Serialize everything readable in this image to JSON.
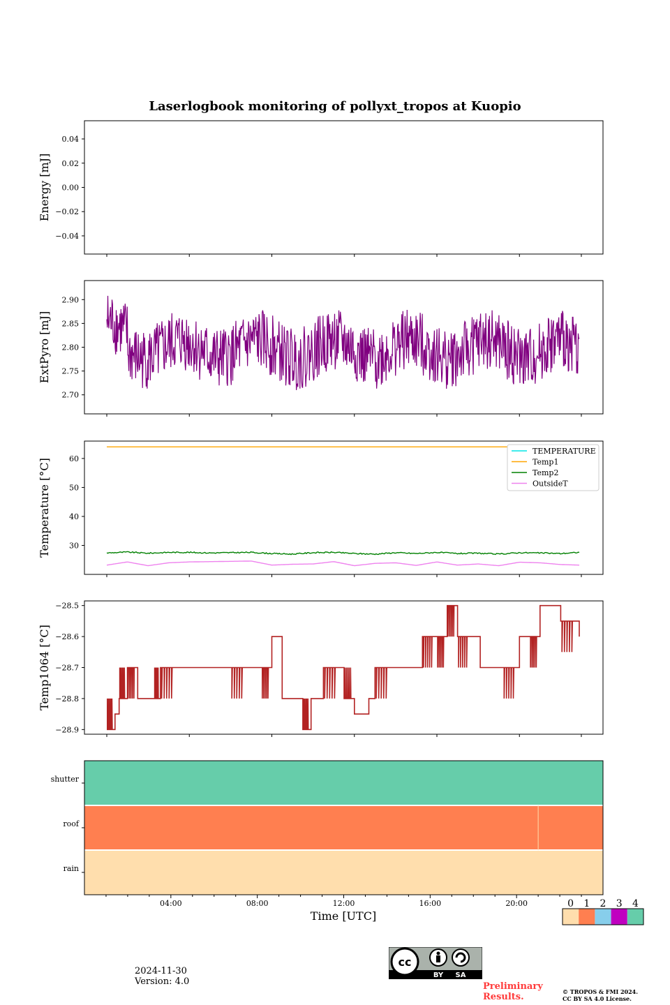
{
  "chart_data": {
    "title": "Laserlogbook monitoring of pollyxt_tropos at Kuopio",
    "xlabel": "Time [UTC]",
    "x_ticks": [
      "04:00",
      "08:00",
      "12:00",
      "16:00",
      "20:00"
    ],
    "panels": [
      {
        "type": "line",
        "ylabel": "Energy [mJ]",
        "yticks": [
          "0.04",
          "0.02",
          "0.00",
          "−0.02",
          "−0.04"
        ],
        "ylim": [
          -0.055,
          0.055
        ],
        "series": []
      },
      {
        "type": "line",
        "ylabel": "ExtPyro [mJ]",
        "yticks": [
          "2.90",
          "2.85",
          "2.80",
          "2.75",
          "2.70"
        ],
        "ylim": [
          2.66,
          2.94
        ],
        "series": [
          {
            "color": "#800080",
            "x_range_hours": [
              1.0,
              23.9
            ],
            "mean": 2.795,
            "min": 2.67,
            "max": 2.925
          }
        ]
      },
      {
        "type": "line",
        "ylabel": "Temperature [°C]",
        "yticks": [
          "60",
          "50",
          "40",
          "30"
        ],
        "ylim": [
          20,
          66
        ],
        "legend_position": "upper-right",
        "series": [
          {
            "name": "TEMPERATURE",
            "color": "#00e5e5",
            "values": []
          },
          {
            "name": "Temp1",
            "color": "#ffa500",
            "x": [
              1.0,
              23.9
            ],
            "values": [
              64,
              64
            ]
          },
          {
            "name": "Temp2",
            "color": "#008000",
            "x": [
              1,
              2,
              3,
              4,
              5,
              6,
              7,
              8,
              9,
              10,
              11,
              12,
              13,
              14,
              15,
              16,
              17,
              18,
              19,
              20,
              21,
              22,
              23,
              23.9
            ],
            "values": [
              27.4,
              27.7,
              27.3,
              27.6,
              27.6,
              27.4,
              27.5,
              27.6,
              27.2,
              27.0,
              27.5,
              27.6,
              27.2,
              27.0,
              27.5,
              27.2,
              27.6,
              27.2,
              27.3,
              27.0,
              27.5,
              27.4,
              27.2,
              27.6
            ]
          },
          {
            "name": "OutsideT",
            "color": "#ee82ee",
            "x": [
              1,
              2,
              3,
              4,
              5,
              6,
              7,
              8,
              9,
              10,
              11,
              12,
              13,
              14,
              15,
              16,
              17,
              18,
              19,
              20,
              21,
              22,
              23,
              23.9
            ],
            "values": [
              23.2,
              24.3,
              23.0,
              24.0,
              24.3,
              24.4,
              24.5,
              24.6,
              23.2,
              23.5,
              23.6,
              24.4,
              23.0,
              23.8,
              24.0,
              23.1,
              24.3,
              23.2,
              23.6,
              23.0,
              24.2,
              24.0,
              23.4,
              23.2
            ]
          }
        ]
      },
      {
        "type": "line",
        "ylabel": "Temp1064 [°C]",
        "yticks": [
          "−28.5",
          "−28.6",
          "−28.7",
          "−28.8",
          "−28.9"
        ],
        "ylim": [
          -28.915,
          -28.485
        ],
        "series": [
          {
            "color": "#b22222",
            "x": [
              1.0,
              1.4,
              1.6,
              2.0,
              2.5,
              3.3,
              3.6,
              7.0,
              8.5,
              9.0,
              9.5,
              10.5,
              10.9,
              11.5,
              12.5,
              13.0,
              13.7,
              14.0,
              15.0,
              16.0,
              16.3,
              17.0,
              17.5,
              18.0,
              18.7,
              19.1,
              20.2,
              21.0,
              21.5,
              22.0,
              23.0,
              23.9
            ],
            "values": [
              -28.9,
              -28.85,
              -28.8,
              -28.7,
              -28.8,
              -28.8,
              -28.7,
              -28.7,
              -28.7,
              -28.6,
              -28.8,
              -28.9,
              -28.8,
              -28.7,
              -28.8,
              -28.85,
              -28.8,
              -28.7,
              -28.7,
              -28.7,
              -28.6,
              -28.6,
              -28.5,
              -28.6,
              -28.6,
              -28.7,
              -28.7,
              -28.6,
              -28.6,
              -28.5,
              -28.55,
              -28.6
            ]
          }
        ]
      },
      {
        "type": "heatmap",
        "rows": [
          "shutter",
          "roof",
          "rain"
        ],
        "row_states": [
          4,
          1,
          0
        ]
      }
    ],
    "colorbar": {
      "labels": [
        "0",
        "1",
        "2",
        "3",
        "4"
      ],
      "colors": [
        "#ffdead",
        "#ff7f50",
        "#87ceeb",
        "#c000c0",
        "#66cdaa"
      ]
    }
  },
  "footer": {
    "date": "2024-11-30",
    "version": "Version: 4.0",
    "preliminary_line1": "Preliminary",
    "preliminary_line2": "Results.",
    "copyright_line1": "© TROPOS & FMI 2024.",
    "copyright_line2": "CC BY SA 4.0 License.",
    "cc_badge": {
      "by": "BY",
      "sa": "SA"
    }
  }
}
